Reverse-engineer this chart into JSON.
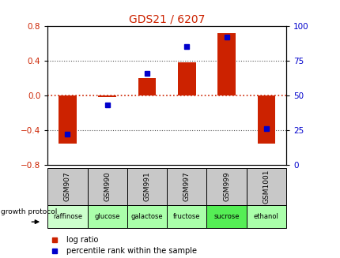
{
  "title": "GDS21 / 6207",
  "samples": [
    "GSM907",
    "GSM990",
    "GSM991",
    "GSM997",
    "GSM999",
    "GSM1001"
  ],
  "protocols": [
    "raffinose",
    "glucose",
    "galactose",
    "fructose",
    "sucrose",
    "ethanol"
  ],
  "log_ratios": [
    -0.55,
    -0.02,
    0.2,
    0.38,
    0.72,
    -0.55
  ],
  "percentile_ranks": [
    22,
    43,
    66,
    85,
    92,
    26
  ],
  "ylim_left": [
    -0.8,
    0.8
  ],
  "ylim_right": [
    0,
    100
  ],
  "yticks_left": [
    -0.8,
    -0.4,
    0.0,
    0.4,
    0.8
  ],
  "yticks_right": [
    0,
    25,
    50,
    75,
    100
  ],
  "bar_color": "#cc2200",
  "dot_color": "#0000cc",
  "title_color": "#cc2200",
  "bg_color": "#ffffff",
  "cell_bg_gray": "#c8c8c8",
  "protocol_colors": [
    "#ccffcc",
    "#aaffaa",
    "#aaffaa",
    "#aaffaa",
    "#55ee55",
    "#aaffaa"
  ],
  "zero_line_color": "#cc2200",
  "dotted_line_color": "#555555",
  "left_ytick_fontsize": 7.5,
  "right_ytick_fontsize": 7.5,
  "title_fontsize": 10
}
